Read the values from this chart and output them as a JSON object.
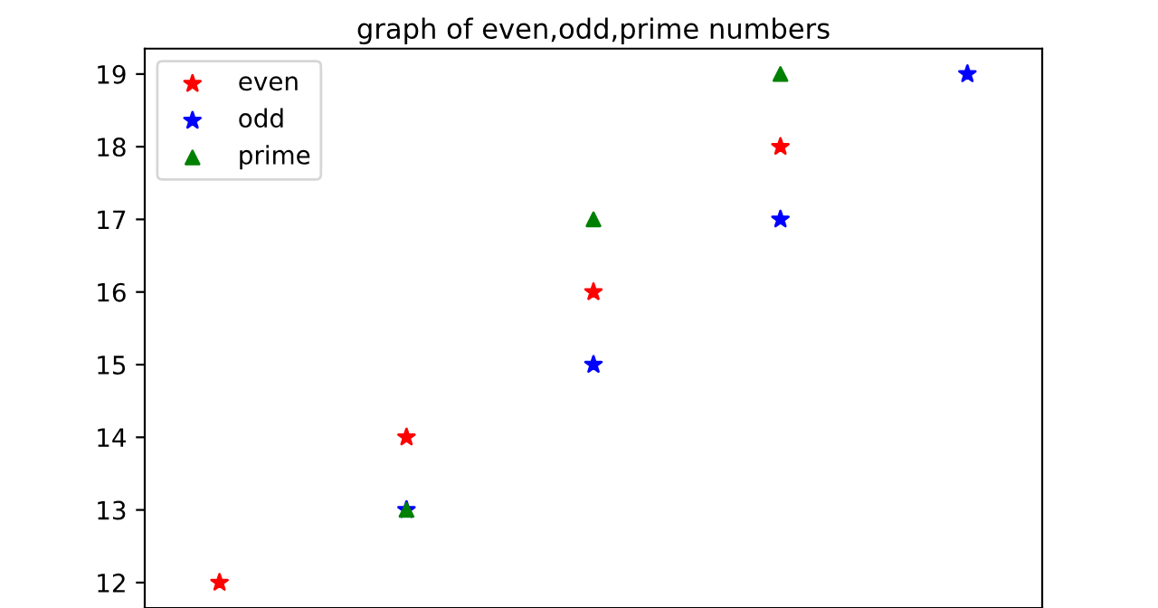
{
  "chart_data": {
    "type": "scatter",
    "title": "graph of even,odd,prime numbers",
    "categories": [
      null,
      null,
      null,
      null,
      null
    ],
    "series": [
      {
        "name": "even",
        "color": "#ff0000",
        "marker": "star",
        "values": [
          12,
          14,
          16,
          18,
          null
        ]
      },
      {
        "name": "odd",
        "color": "#0000ff",
        "marker": "star",
        "values": [
          null,
          13,
          15,
          17,
          19
        ]
      },
      {
        "name": "prime",
        "color": "#008000",
        "marker": "triangle",
        "values": [
          null,
          13,
          17,
          19,
          null
        ]
      }
    ],
    "ylim": [
      11.65,
      19.35
    ],
    "yticks": [
      12,
      13,
      14,
      15,
      16,
      17,
      18,
      19
    ],
    "tick_labels": "y",
    "legend": "top left",
    "grid": false
  }
}
